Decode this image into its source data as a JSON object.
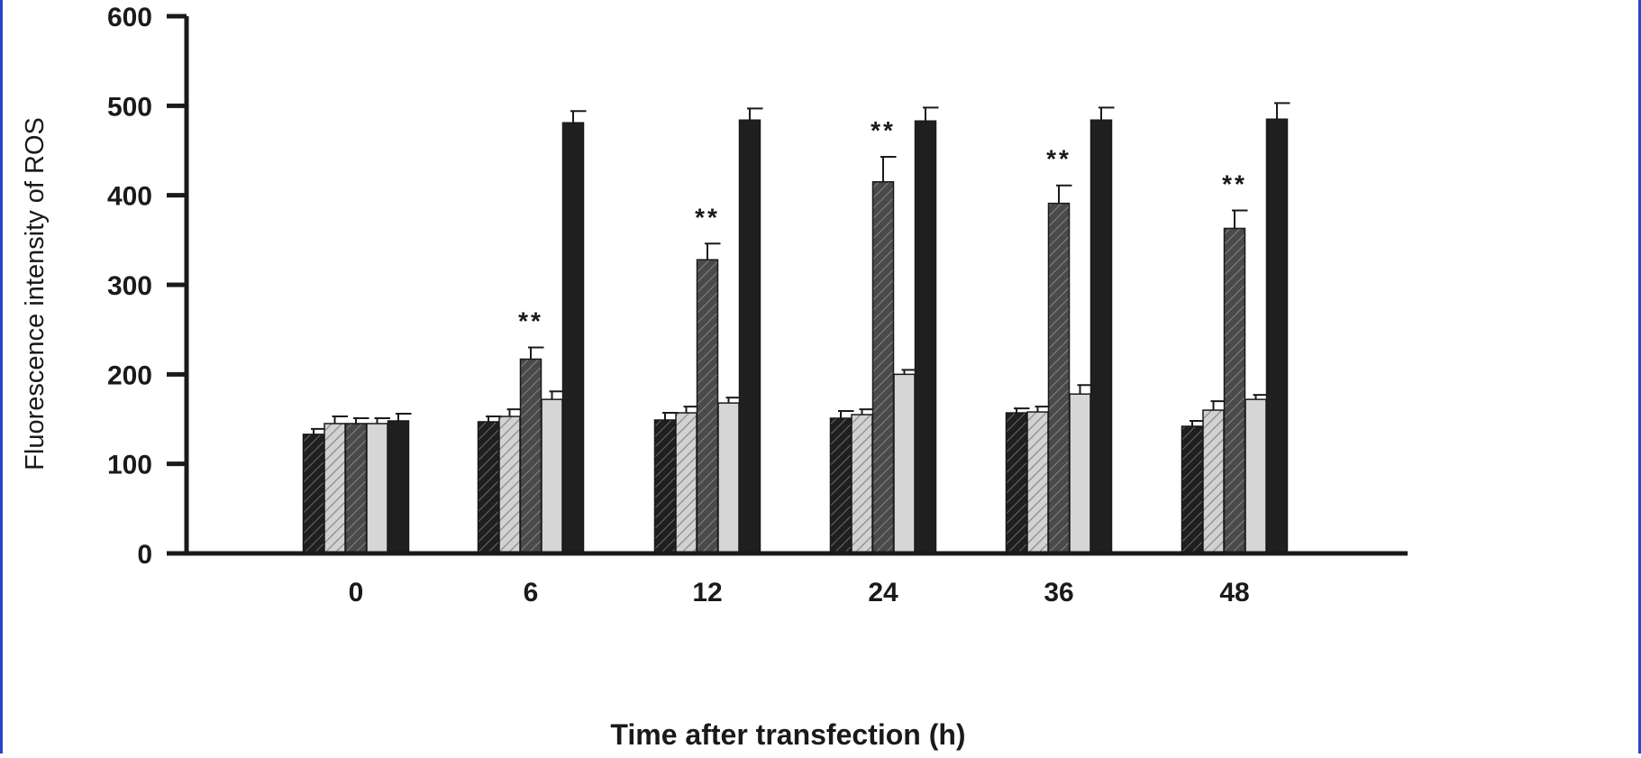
{
  "chart_data": {
    "type": "bar",
    "title": "",
    "xlabel": "Time after transfection (h)",
    "ylabel": "Fluorescence intensity of ROS",
    "ylim": [
      0,
      600
    ],
    "yticks": [
      "0",
      "100",
      "200",
      "300",
      "400",
      "500",
      "600"
    ],
    "categories": [
      "0",
      "6",
      "12",
      "24",
      "36",
      "48"
    ],
    "grid": false,
    "legend": "none",
    "series": [
      {
        "pattern": "black-hatched",
        "values": [
          133,
          147,
          149,
          151,
          157,
          142
        ],
        "errors": [
          6,
          6,
          8,
          8,
          5,
          6
        ]
      },
      {
        "pattern": "light-hatched",
        "values": [
          145,
          153,
          157,
          155,
          158,
          160
        ],
        "errors": [
          8,
          8,
          7,
          6,
          6,
          10
        ]
      },
      {
        "pattern": "dark-hatched",
        "values": [
          145,
          217,
          328,
          415,
          391,
          363
        ],
        "errors": [
          6,
          13,
          18,
          28,
          20,
          20
        ]
      },
      {
        "pattern": "light-gray",
        "values": [
          145,
          172,
          168,
          200,
          178,
          172
        ],
        "errors": [
          6,
          9,
          6,
          5,
          10,
          5
        ]
      },
      {
        "pattern": "solid-black",
        "values": [
          148,
          481,
          484,
          483,
          484,
          485
        ],
        "errors": [
          8,
          13,
          13,
          15,
          14,
          18
        ]
      }
    ],
    "annotations": [
      {
        "category": "6",
        "text": "**"
      },
      {
        "category": "12",
        "text": "**"
      },
      {
        "category": "24",
        "text": "**"
      },
      {
        "category": "36",
        "text": "**"
      },
      {
        "category": "48",
        "text": "**"
      }
    ],
    "colors": {
      "black": "#1f1f1f",
      "dark_gray": "#555555",
      "light_gray": "#d6d6d6",
      "hatch_light": "#a8a8a8",
      "axis": "#1a1a1a",
      "frame_edge": "#2a44c8"
    }
  }
}
